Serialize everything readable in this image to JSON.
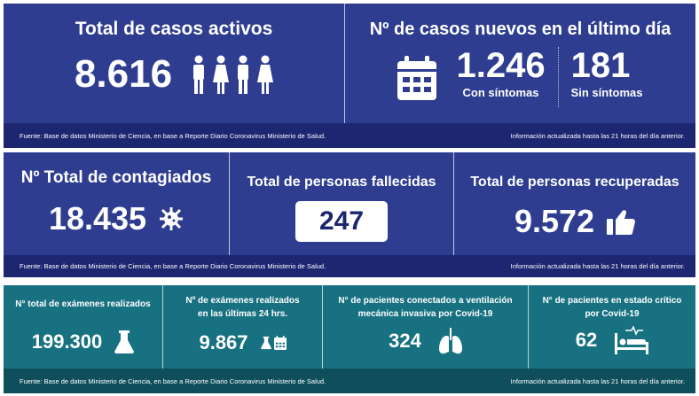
{
  "colors": {
    "blue": "#2e3d8f",
    "blue_footer": "#1d2670",
    "teal": "#177180",
    "teal_footer": "#0e4f5b"
  },
  "footer": {
    "source": "Fuente: Base de datos Ministerio de Ciencia, en base a Reporte Diario Coronavirus Ministerio de Salud.",
    "updated": "Información actualizada hasta las 21 horas  del día anterior."
  },
  "active": {
    "title": "Total de casos activos",
    "value": "8.616",
    "icon": "people-icon"
  },
  "new_cases": {
    "title": "Nº de casos nuevos en el último día",
    "with_symptoms": "1.246",
    "with_label": "Con síntomas",
    "without_symptoms": "181",
    "without_label": "Sin síntomas",
    "icon": "calendar-icon"
  },
  "total": {
    "title": "Nº Total de contagiados",
    "value": "18.435",
    "icon": "virus-icon"
  },
  "deaths": {
    "title": "Total de personas fallecidas",
    "value": "247"
  },
  "recovered": {
    "title": "Total de personas recuperadas",
    "value": "9.572",
    "icon": "thumbs-up-icon"
  },
  "exams_total": {
    "title": "N° total de exámenes realizados",
    "value": "199.300",
    "icon": "flask-icon"
  },
  "exams_24h": {
    "title": "Nº de exámenes realizados",
    "title2": "en las últimas 24 hrs.",
    "value": "9.867",
    "icon": "flask-calendar-icon"
  },
  "ventilation": {
    "title": "N° de pacientes conectados a ventilación",
    "title2": "mecánica invasiva por Covid-19",
    "value": "324",
    "icon": "lungs-icon"
  },
  "critical": {
    "title": "N° de pacientes en estado crítico",
    "title2": "por Covid-19",
    "value": "62",
    "icon": "hospital-bed-icon"
  }
}
